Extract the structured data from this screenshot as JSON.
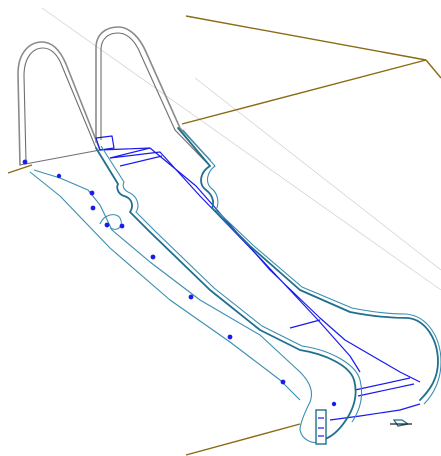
{
  "drawing": {
    "subject": "escalator-line-drawing",
    "colors": {
      "background": "#ffffff",
      "truss_outline": "#8a8a8a",
      "handrail": "#1f6f8e",
      "steps": "#1a1aee",
      "building_lines": "#8b6a14",
      "guide_lines": "#cfcfcf"
    }
  }
}
